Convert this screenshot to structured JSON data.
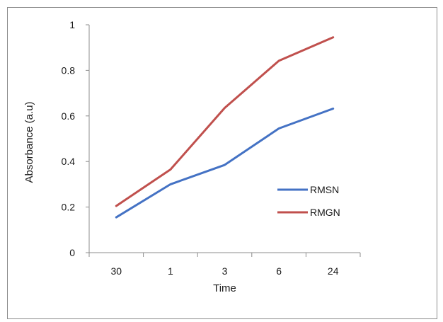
{
  "chart_data": {
    "type": "line",
    "title": "",
    "xlabel": "Time",
    "ylabel": "Absorbance (a.u)",
    "categories": [
      "30",
      "1",
      "3",
      "6",
      "24"
    ],
    "ylim": [
      0,
      1
    ],
    "yticks": [
      "0",
      "0.2",
      "0.4",
      "0.6",
      "0.8",
      "1"
    ],
    "grid": false,
    "legend_position": "right",
    "series": [
      {
        "name": "RMSN",
        "color": "#4472c4",
        "values": [
          0.155,
          0.3,
          0.385,
          0.545,
          0.632
        ]
      },
      {
        "name": "RMGN",
        "color": "#c0504d",
        "values": [
          0.205,
          0.365,
          0.635,
          0.842,
          0.945
        ]
      }
    ]
  }
}
